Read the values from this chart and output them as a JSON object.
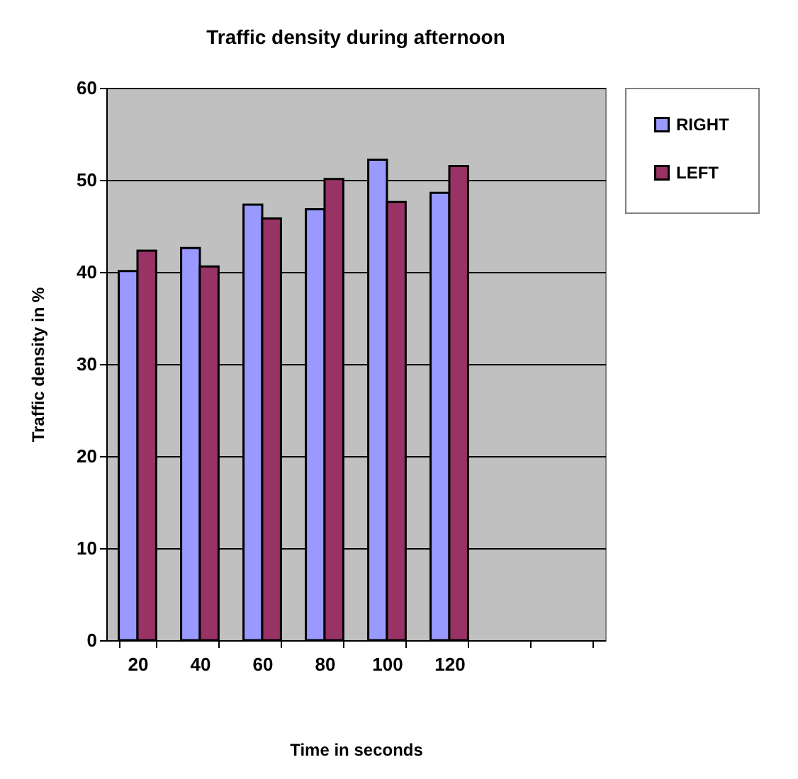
{
  "chart_data": {
    "type": "bar",
    "title": "Traffic density during afternoon",
    "xlabel": "Time in seconds",
    "ylabel": "Traffic density in %",
    "categories": [
      "20",
      "40",
      "60",
      "80",
      "100",
      "120",
      null,
      null
    ],
    "series": [
      {
        "name": "RIGHT",
        "color": "#9999ff",
        "values": [
          40.1,
          42.6,
          47.3,
          46.8,
          52.2,
          48.6,
          null,
          null
        ]
      },
      {
        "name": "LEFT",
        "color": "#993366",
        "values": [
          42.3,
          40.6,
          45.8,
          50.1,
          47.6,
          51.5,
          null,
          null
        ]
      }
    ],
    "ylim": [
      0,
      60
    ],
    "yticks": [
      0,
      10,
      20,
      30,
      40,
      50,
      60
    ],
    "grid": "y",
    "legend": "right"
  }
}
